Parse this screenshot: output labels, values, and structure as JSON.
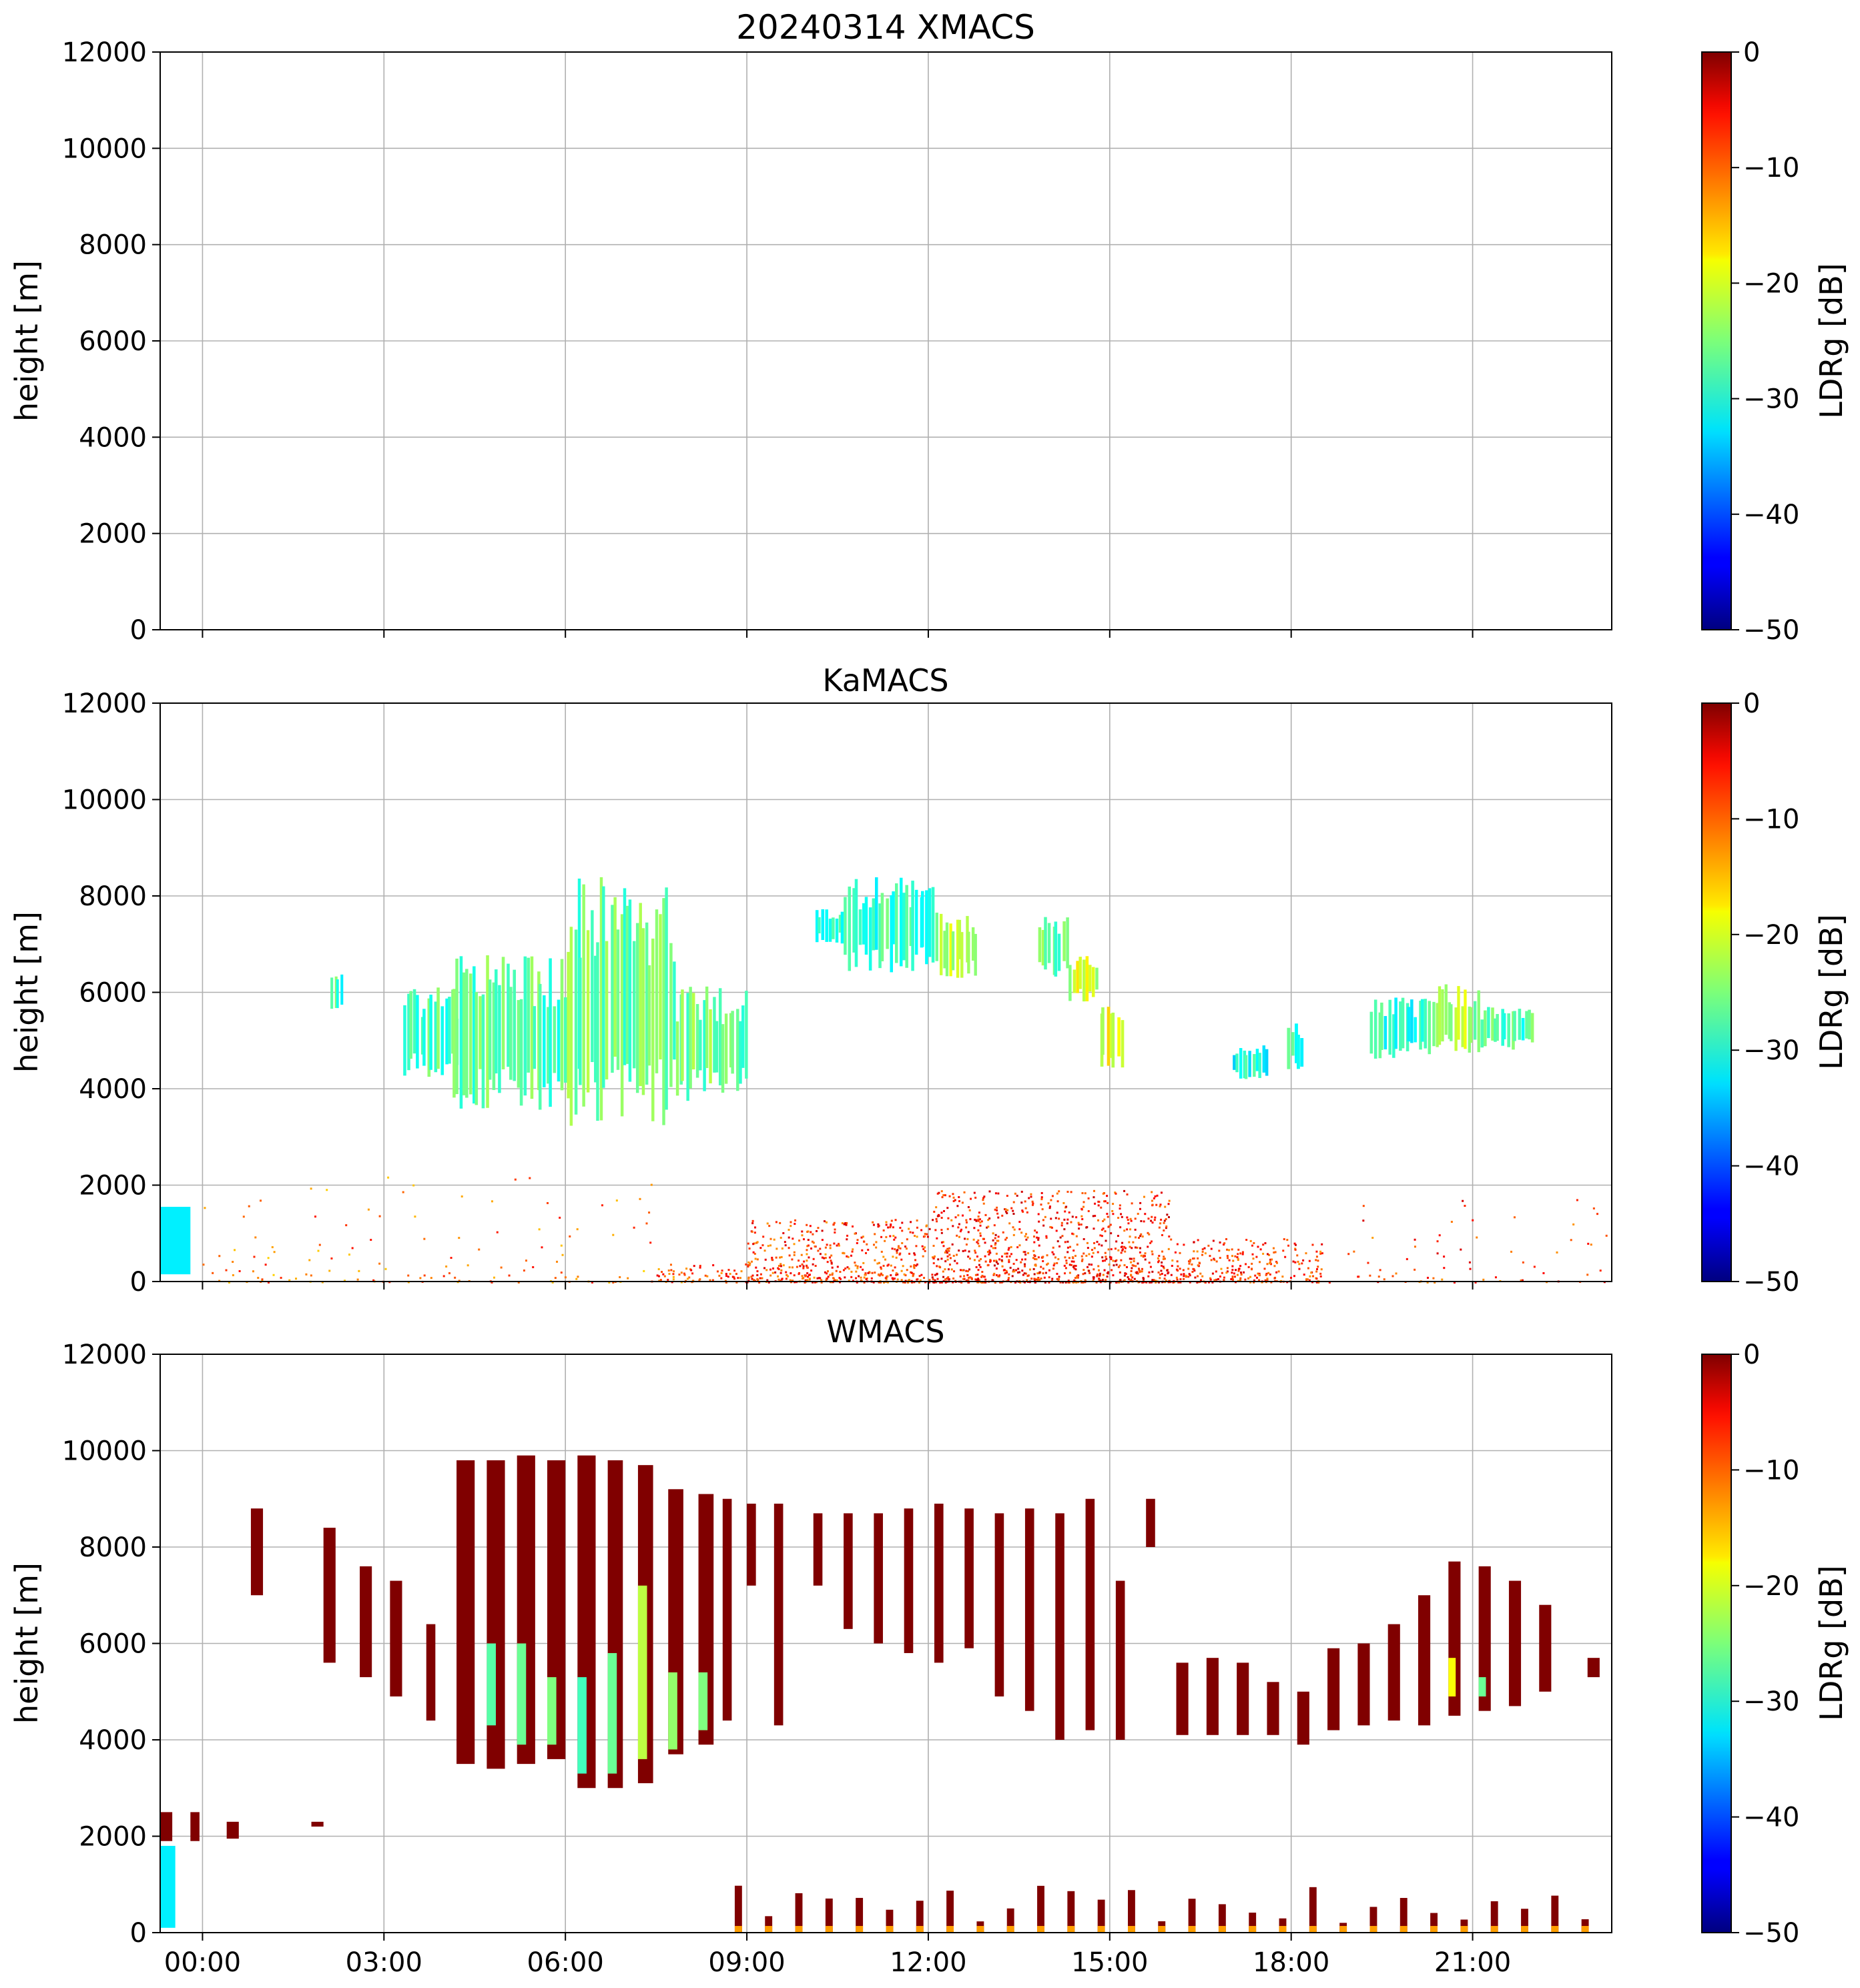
{
  "figure": {
    "title": "20240314 XMACS",
    "panels": [
      {
        "id": "xmacs",
        "title": "20240314 XMACS",
        "ylabel": "height [m]",
        "cbar_label": "LDRg [dB]",
        "show_xticklabels": false
      },
      {
        "id": "kamacs",
        "title": "KaMACS",
        "ylabel": "height [m]",
        "cbar_label": "LDRg [dB]",
        "show_xticklabels": false
      },
      {
        "id": "wmacs",
        "title": "WMACS",
        "ylabel": "height [m]",
        "cbar_label": "LDRg [dB]",
        "show_xticklabels": true
      }
    ],
    "x_ticks": [
      "00:00",
      "03:00",
      "06:00",
      "09:00",
      "12:00",
      "15:00",
      "18:00",
      "21:00"
    ],
    "y_ticks": [
      "0",
      "2000",
      "4000",
      "6000",
      "8000",
      "10000",
      "12000"
    ],
    "cbar_ticks": [
      "0",
      "−10",
      "−20",
      "−30",
      "−40",
      "−50"
    ]
  },
  "chart_data": [
    {
      "type": "heatmap",
      "title": "20240314 XMACS",
      "xlabel": "",
      "ylabel": "height [m]",
      "x_unit": "hours UTC",
      "xlim": [
        -0.7,
        23.3
      ],
      "ylim": [
        0,
        12000
      ],
      "colorbar": {
        "label": "LDRg [dB]",
        "range": [
          -50,
          0
        ],
        "colormap": "jet"
      },
      "grid": true,
      "echoes": []
    },
    {
      "type": "heatmap",
      "title": "KaMACS",
      "xlabel": "",
      "ylabel": "height [m]",
      "x_unit": "hours UTC",
      "xlim": [
        -0.7,
        23.3
      ],
      "ylim": [
        0,
        12000
      ],
      "colorbar": {
        "label": "LDRg [dB]",
        "range": [
          -50,
          0
        ],
        "colormap": "jet"
      },
      "grid": true,
      "echoes": [
        {
          "t0": -0.7,
          "t1": -0.2,
          "h0": 150,
          "h1": 1550,
          "ldr": -32,
          "pattern": "solid"
        },
        {
          "t0": 2.1,
          "t1": 2.3,
          "h0": 5600,
          "h1": 6500,
          "ldr": -28,
          "pattern": "streaks"
        },
        {
          "t0": 3.3,
          "t1": 4.2,
          "h0": 4200,
          "h1": 6100,
          "ldr": -27,
          "pattern": "streaks"
        },
        {
          "t0": 4.1,
          "t1": 6.0,
          "h0": 3500,
          "h1": 6800,
          "ldr": -27,
          "pattern": "streaks"
        },
        {
          "t0": 6.0,
          "t1": 7.8,
          "h0": 3100,
          "h1": 8400,
          "ldr": -26,
          "pattern": "streaks"
        },
        {
          "t0": 7.8,
          "t1": 9.0,
          "h0": 3700,
          "h1": 6200,
          "ldr": -26,
          "pattern": "streaks"
        },
        {
          "t0": 10.1,
          "t1": 10.6,
          "h0": 7000,
          "h1": 7800,
          "ldr": -30,
          "pattern": "streaks"
        },
        {
          "t0": 10.6,
          "t1": 12.1,
          "h0": 6400,
          "h1": 8400,
          "ldr": -28,
          "pattern": "streaks"
        },
        {
          "t0": 12.1,
          "t1": 12.8,
          "h0": 6300,
          "h1": 7700,
          "ldr": -22,
          "pattern": "streaks"
        },
        {
          "t0": 13.8,
          "t1": 14.3,
          "h0": 6300,
          "h1": 7600,
          "ldr": -26,
          "pattern": "streaks"
        },
        {
          "t0": 14.3,
          "t1": 14.8,
          "h0": 5800,
          "h1": 6800,
          "ldr": -21,
          "pattern": "streaks"
        },
        {
          "t0": 14.8,
          "t1": 15.2,
          "h0": 4400,
          "h1": 5800,
          "ldr": -20,
          "pattern": "streaks"
        },
        {
          "t0": 17.0,
          "t1": 17.6,
          "h0": 4200,
          "h1": 4900,
          "ldr": -30,
          "pattern": "streaks"
        },
        {
          "t0": 17.9,
          "t1": 18.2,
          "h0": 4400,
          "h1": 5400,
          "ldr": -29,
          "pattern": "streaks"
        },
        {
          "t0": 19.3,
          "t1": 20.3,
          "h0": 4600,
          "h1": 5900,
          "ldr": -29,
          "pattern": "streaks"
        },
        {
          "t0": 20.3,
          "t1": 21.1,
          "h0": 4700,
          "h1": 6200,
          "ldr": -23,
          "pattern": "streaks"
        },
        {
          "t0": 21.1,
          "t1": 22.0,
          "h0": 4800,
          "h1": 5700,
          "ldr": -28,
          "pattern": "streaks"
        },
        {
          "t0": 7.5,
          "t1": 9.0,
          "h0": 0,
          "h1": 400,
          "ldr": -10,
          "pattern": "speckle"
        },
        {
          "t0": 9.0,
          "t1": 12.0,
          "h0": 0,
          "h1": 1300,
          "ldr": -9,
          "pattern": "speckle"
        },
        {
          "t0": 12.0,
          "t1": 16.0,
          "h0": 0,
          "h1": 1900,
          "ldr": -8,
          "pattern": "speckle"
        },
        {
          "t0": 16.0,
          "t1": 18.5,
          "h0": 0,
          "h1": 900,
          "ldr": -9,
          "pattern": "speckle"
        },
        {
          "t0": 18.5,
          "t1": 23.3,
          "h0": 0,
          "h1": 1800,
          "ldr": -9,
          "pattern": "sparse"
        },
        {
          "t0": 0.0,
          "t1": 7.5,
          "h0": 0,
          "h1": 2200,
          "ldr": -12,
          "pattern": "sparse"
        }
      ]
    },
    {
      "type": "heatmap",
      "title": "WMACS",
      "xlabel": "",
      "ylabel": "height [m]",
      "x_unit": "hours UTC",
      "xlim": [
        -0.7,
        23.3
      ],
      "ylim": [
        0,
        12000
      ],
      "colorbar": {
        "label": "LDRg [dB]",
        "range": [
          -50,
          0
        ],
        "colormap": "jet"
      },
      "grid": true,
      "echoes": [
        {
          "t0": -0.7,
          "t1": -0.45,
          "h0": 100,
          "h1": 1800,
          "ldr": -32,
          "pattern": "solid"
        },
        {
          "t0": -0.7,
          "t1": -0.5,
          "h0": 1900,
          "h1": 2500,
          "ldr": 0,
          "pattern": "solid"
        },
        {
          "t0": -0.2,
          "t1": -0.05,
          "h0": 1900,
          "h1": 2500,
          "ldr": 0,
          "pattern": "solid"
        },
        {
          "t0": 0.4,
          "t1": 0.6,
          "h0": 1950,
          "h1": 2300,
          "ldr": 0,
          "pattern": "solid"
        },
        {
          "t0": 0.8,
          "t1": 1.0,
          "h0": 7000,
          "h1": 8800,
          "ldr": 0,
          "pattern": "solid"
        },
        {
          "t0": 1.8,
          "t1": 2.0,
          "h0": 2200,
          "h1": 2300,
          "ldr": 0,
          "pattern": "solid"
        },
        {
          "t0": 2.0,
          "t1": 2.2,
          "h0": 5600,
          "h1": 8400,
          "ldr": 0,
          "pattern": "solid"
        },
        {
          "t0": 2.6,
          "t1": 2.8,
          "h0": 5300,
          "h1": 7600,
          "ldr": 0,
          "pattern": "solid"
        },
        {
          "t0": 3.1,
          "t1": 3.3,
          "h0": 4900,
          "h1": 7300,
          "ldr": 0,
          "pattern": "solid"
        },
        {
          "t0": 3.7,
          "t1": 3.85,
          "h0": 4400,
          "h1": 6400,
          "ldr": 0,
          "pattern": "solid"
        },
        {
          "t0": 4.2,
          "t1": 4.5,
          "h0": 3500,
          "h1": 9800,
          "ldr": 0,
          "pattern": "solid"
        },
        {
          "t0": 4.7,
          "t1": 5.0,
          "h0": 3400,
          "h1": 9800,
          "ldr": 0,
          "pattern": "solid"
        },
        {
          "t0": 5.2,
          "t1": 5.5,
          "h0": 3500,
          "h1": 9900,
          "ldr": 0,
          "pattern": "solid"
        },
        {
          "t0": 5.7,
          "t1": 6.0,
          "h0": 3600,
          "h1": 9800,
          "ldr": 0,
          "pattern": "solid"
        },
        {
          "t0": 6.2,
          "t1": 6.5,
          "h0": 3000,
          "h1": 9900,
          "ldr": 0,
          "pattern": "solid"
        },
        {
          "t0": 6.7,
          "t1": 6.95,
          "h0": 3000,
          "h1": 9800,
          "ldr": 0,
          "pattern": "solid"
        },
        {
          "t0": 7.2,
          "t1": 7.45,
          "h0": 3100,
          "h1": 9700,
          "ldr": 0,
          "pattern": "solid"
        },
        {
          "t0": 7.7,
          "t1": 7.95,
          "h0": 3700,
          "h1": 9200,
          "ldr": 0,
          "pattern": "solid"
        },
        {
          "t0": 8.2,
          "t1": 8.45,
          "h0": 3900,
          "h1": 9100,
          "ldr": 0,
          "pattern": "solid"
        },
        {
          "t0": 8.6,
          "t1": 8.75,
          "h0": 4400,
          "h1": 9000,
          "ldr": 0,
          "pattern": "solid"
        },
        {
          "t0": 9.0,
          "t1": 9.15,
          "h0": 7200,
          "h1": 8900,
          "ldr": 0,
          "pattern": "solid"
        },
        {
          "t0": 9.45,
          "t1": 9.6,
          "h0": 4300,
          "h1": 8900,
          "ldr": 0,
          "pattern": "solid"
        },
        {
          "t0": 10.1,
          "t1": 10.25,
          "h0": 7200,
          "h1": 8700,
          "ldr": 0,
          "pattern": "solid"
        },
        {
          "t0": 10.6,
          "t1": 10.75,
          "h0": 6300,
          "h1": 8700,
          "ldr": 0,
          "pattern": "solid"
        },
        {
          "t0": 11.1,
          "t1": 11.25,
          "h0": 6000,
          "h1": 8700,
          "ldr": 0,
          "pattern": "solid"
        },
        {
          "t0": 11.6,
          "t1": 11.75,
          "h0": 5800,
          "h1": 8800,
          "ldr": 0,
          "pattern": "solid"
        },
        {
          "t0": 12.1,
          "t1": 12.25,
          "h0": 5600,
          "h1": 8900,
          "ldr": 0,
          "pattern": "solid"
        },
        {
          "t0": 12.6,
          "t1": 12.75,
          "h0": 5900,
          "h1": 8800,
          "ldr": 0,
          "pattern": "solid"
        },
        {
          "t0": 13.1,
          "t1": 13.25,
          "h0": 4900,
          "h1": 8700,
          "ldr": 0,
          "pattern": "solid"
        },
        {
          "t0": 13.6,
          "t1": 13.75,
          "h0": 4600,
          "h1": 8800,
          "ldr": 0,
          "pattern": "solid"
        },
        {
          "t0": 14.1,
          "t1": 14.25,
          "h0": 4000,
          "h1": 8700,
          "ldr": 0,
          "pattern": "solid"
        },
        {
          "t0": 14.6,
          "t1": 14.75,
          "h0": 4200,
          "h1": 9000,
          "ldr": 0,
          "pattern": "solid"
        },
        {
          "t0": 15.1,
          "t1": 15.25,
          "h0": 4000,
          "h1": 7300,
          "ldr": 0,
          "pattern": "solid"
        },
        {
          "t0": 15.6,
          "t1": 15.75,
          "h0": 8000,
          "h1": 9000,
          "ldr": 0,
          "pattern": "solid"
        },
        {
          "t0": 16.1,
          "t1": 16.3,
          "h0": 4100,
          "h1": 5600,
          "ldr": 0,
          "pattern": "solid"
        },
        {
          "t0": 16.6,
          "t1": 16.8,
          "h0": 4100,
          "h1": 5700,
          "ldr": 0,
          "pattern": "solid"
        },
        {
          "t0": 17.1,
          "t1": 17.3,
          "h0": 4100,
          "h1": 5600,
          "ldr": 0,
          "pattern": "solid"
        },
        {
          "t0": 17.6,
          "t1": 17.8,
          "h0": 4100,
          "h1": 5200,
          "ldr": 0,
          "pattern": "solid"
        },
        {
          "t0": 18.1,
          "t1": 18.3,
          "h0": 3900,
          "h1": 5000,
          "ldr": 0,
          "pattern": "solid"
        },
        {
          "t0": 18.6,
          "t1": 18.8,
          "h0": 4200,
          "h1": 5900,
          "ldr": 0,
          "pattern": "solid"
        },
        {
          "t0": 19.1,
          "t1": 19.3,
          "h0": 4300,
          "h1": 6000,
          "ldr": 0,
          "pattern": "solid"
        },
        {
          "t0": 19.6,
          "t1": 19.8,
          "h0": 4400,
          "h1": 6400,
          "ldr": 0,
          "pattern": "solid"
        },
        {
          "t0": 20.1,
          "t1": 20.3,
          "h0": 4300,
          "h1": 7000,
          "ldr": 0,
          "pattern": "solid"
        },
        {
          "t0": 20.6,
          "t1": 20.8,
          "h0": 4500,
          "h1": 7700,
          "ldr": 0,
          "pattern": "solid"
        },
        {
          "t0": 21.1,
          "t1": 21.3,
          "h0": 4600,
          "h1": 7600,
          "ldr": 0,
          "pattern": "solid"
        },
        {
          "t0": 21.6,
          "t1": 21.8,
          "h0": 4700,
          "h1": 7300,
          "ldr": 0,
          "pattern": "solid"
        },
        {
          "t0": 22.1,
          "t1": 22.3,
          "h0": 5000,
          "h1": 6800,
          "ldr": 0,
          "pattern": "solid"
        },
        {
          "t0": 22.9,
          "t1": 23.1,
          "h0": 5300,
          "h1": 5700,
          "ldr": 0,
          "pattern": "solid"
        },
        {
          "t0": 4.7,
          "t1": 4.85,
          "h0": 4300,
          "h1": 6000,
          "ldr": -27,
          "pattern": "solid"
        },
        {
          "t0": 5.2,
          "t1": 5.35,
          "h0": 3900,
          "h1": 6000,
          "ldr": -26,
          "pattern": "solid"
        },
        {
          "t0": 5.7,
          "t1": 5.85,
          "h0": 3900,
          "h1": 5300,
          "ldr": -25,
          "pattern": "solid"
        },
        {
          "t0": 6.2,
          "t1": 6.35,
          "h0": 3300,
          "h1": 5300,
          "ldr": -28,
          "pattern": "solid"
        },
        {
          "t0": 6.7,
          "t1": 6.85,
          "h0": 3300,
          "h1": 5800,
          "ldr": -26,
          "pattern": "solid"
        },
        {
          "t0": 7.2,
          "t1": 7.35,
          "h0": 3600,
          "h1": 7200,
          "ldr": -22,
          "pattern": "solid"
        },
        {
          "t0": 7.7,
          "t1": 7.85,
          "h0": 3800,
          "h1": 5400,
          "ldr": -24,
          "pattern": "solid"
        },
        {
          "t0": 8.2,
          "t1": 8.35,
          "h0": 4200,
          "h1": 5400,
          "ldr": -25,
          "pattern": "solid"
        },
        {
          "t0": 20.6,
          "t1": 20.72,
          "h0": 4900,
          "h1": 5700,
          "ldr": -19,
          "pattern": "solid"
        },
        {
          "t0": 21.1,
          "t1": 21.22,
          "h0": 4900,
          "h1": 5300,
          "ldr": -26,
          "pattern": "solid"
        },
        {
          "t0": 8.7,
          "t1": 23.0,
          "h0": 0,
          "h1": 900,
          "ldr": 0,
          "pattern": "columns"
        }
      ]
    }
  ]
}
